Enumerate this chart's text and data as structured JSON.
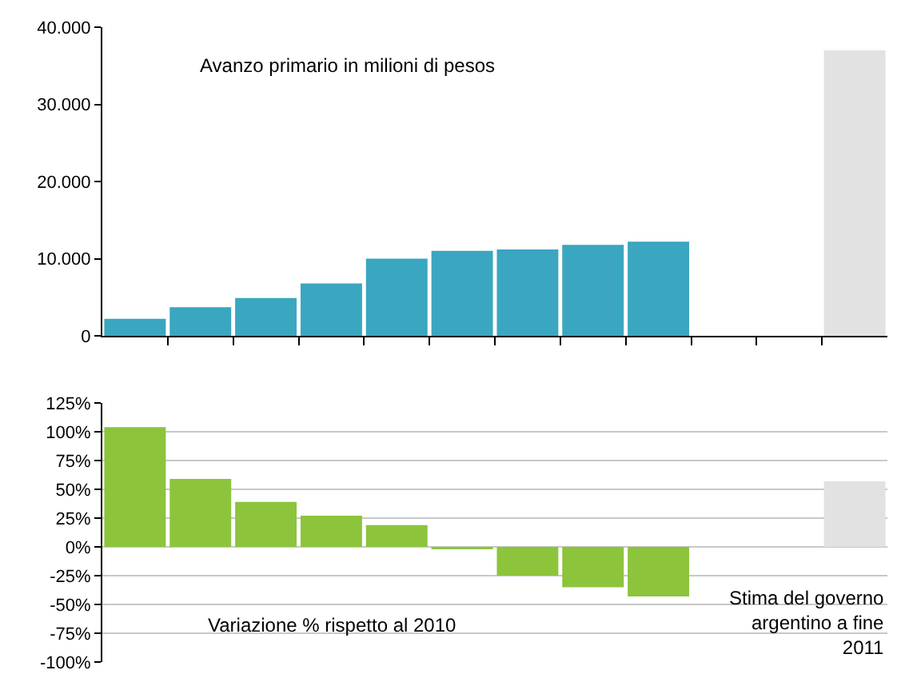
{
  "chart_data": [
    {
      "type": "bar",
      "categories": [
        null,
        null,
        null,
        null,
        null,
        null,
        null,
        null,
        null,
        null,
        null,
        null
      ],
      "values": [
        2200,
        3700,
        4900,
        6800,
        10000,
        11000,
        11200,
        11800,
        12200,
        null,
        null,
        37000
      ],
      "colors": [
        "#3aa6c0",
        "#3aa6c0",
        "#3aa6c0",
        "#3aa6c0",
        "#3aa6c0",
        "#3aa6c0",
        "#3aa6c0",
        "#3aa6c0",
        "#3aa6c0",
        "#3aa6c0",
        "#3aa6c0",
        "#e2e2e2"
      ],
      "ylim": [
        0,
        40000
      ],
      "yticks": [
        {
          "value": 0,
          "label": "0"
        },
        {
          "value": 10000,
          "label": "10.000"
        },
        {
          "value": 20000,
          "label": "20.000"
        },
        {
          "value": 30000,
          "label": "30.000"
        },
        {
          "value": 40000,
          "label": "40.000"
        }
      ],
      "grid": false,
      "annotations": [
        "Avanzo primario in milioni di pesos"
      ]
    },
    {
      "type": "bar",
      "categories": [
        null,
        null,
        null,
        null,
        null,
        null,
        null,
        null,
        null,
        null,
        null,
        null
      ],
      "values": [
        104,
        59,
        39,
        27,
        19,
        -2,
        -25,
        -35,
        -43,
        null,
        null,
        57
      ],
      "colors": [
        "#8cc43c",
        "#8cc43c",
        "#8cc43c",
        "#8cc43c",
        "#8cc43c",
        "#8cc43c",
        "#8cc43c",
        "#8cc43c",
        "#8cc43c",
        "#8cc43c",
        "#8cc43c",
        "#e2e2e2"
      ],
      "ylim": [
        -100,
        125
      ],
      "yticks": [
        {
          "value": -100,
          "label": "-100%"
        },
        {
          "value": -75,
          "label": "-75%"
        },
        {
          "value": -50,
          "label": "-50%"
        },
        {
          "value": -25,
          "label": "-25%"
        },
        {
          "value": 0,
          "label": "0%"
        },
        {
          "value": 25,
          "label": "25%"
        },
        {
          "value": 50,
          "label": "50%"
        },
        {
          "value": 75,
          "label": "75%"
        },
        {
          "value": 100,
          "label": "100%"
        },
        {
          "value": 125,
          "label": "125%"
        }
      ],
      "grid": "y",
      "annotations": [
        "Variazione % rispetto al 2010",
        "Stima del governo argentino a fine 2011"
      ]
    }
  ]
}
